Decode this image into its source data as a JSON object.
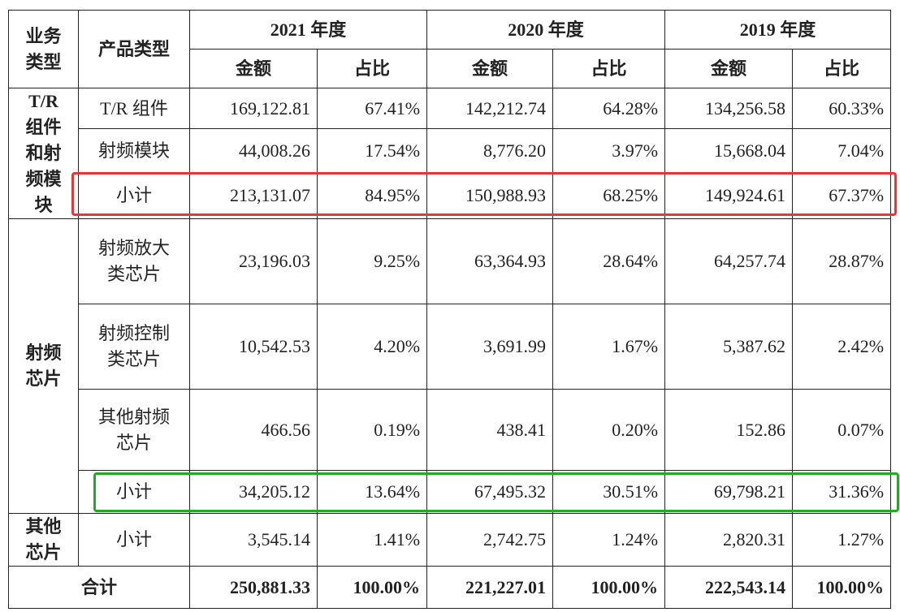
{
  "table": {
    "header": {
      "business_type": "业务\n类型",
      "product_type": "产品类型",
      "years": [
        "2021 年度",
        "2020 年度",
        "2019 年度"
      ],
      "sub_headers": [
        "金额",
        "占比",
        "金额",
        "占比",
        "金额",
        "占比"
      ]
    },
    "groups": [
      {
        "name": "T/R\n组件\n和射\n频模\n块",
        "rows": [
          [
            "T/R 组件",
            "169,122.81",
            "67.41%",
            "142,212.74",
            "64.28%",
            "134,256.58",
            "60.33%"
          ],
          [
            "射频模块",
            "44,008.26",
            "17.54%",
            "8,776.20",
            "3.97%",
            "15,668.04",
            "7.04%"
          ],
          [
            "小计",
            "213,131.07",
            "84.95%",
            "150,988.93",
            "68.25%",
            "149,924.61",
            "67.37%"
          ]
        ]
      },
      {
        "name": "射频\n芯片",
        "rows": [
          [
            "射频放大\n类芯片",
            "23,196.03",
            "9.25%",
            "63,364.93",
            "28.64%",
            "64,257.74",
            "28.87%"
          ],
          [
            "射频控制\n类芯片",
            "10,542.53",
            "4.20%",
            "3,691.99",
            "1.67%",
            "5,387.62",
            "2.42%"
          ],
          [
            "其他射频\n芯片",
            "466.56",
            "0.19%",
            "438.41",
            "0.20%",
            "152.86",
            "0.07%"
          ],
          [
            "小计",
            "34,205.12",
            "13.64%",
            "67,495.32",
            "30.51%",
            "69,798.21",
            "31.36%"
          ]
        ]
      },
      {
        "name": "其他\n芯片",
        "rows": [
          [
            "小计",
            "3,545.14",
            "1.41%",
            "2,742.75",
            "1.24%",
            "2,820.31",
            "1.27%"
          ]
        ]
      }
    ],
    "total": [
      "合计",
      "250,881.33",
      "100.00%",
      "221,227.01",
      "100.00%",
      "222,543.14",
      "100.00%"
    ]
  }
}
